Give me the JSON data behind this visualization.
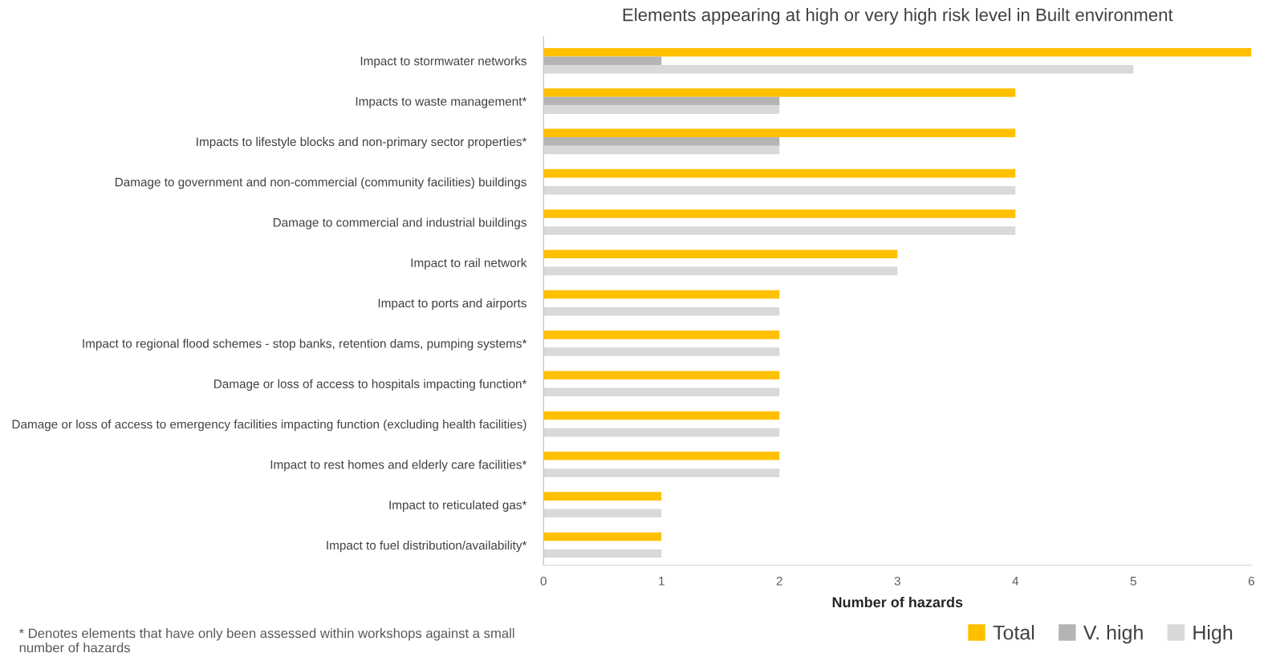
{
  "chart_data": {
    "type": "bar",
    "orientation": "horizontal",
    "title": "Elements appearing at high or very high risk level in Built environment",
    "xlabel": "Number of hazards",
    "categories": [
      "Impact to stormwater networks",
      "Impacts to waste management*",
      "Impacts to lifestyle blocks and non-primary sector properties*",
      "Damage to government and non-commercial (community facilities) buildings",
      "Damage to commercial and industrial buildings",
      "Impact to rail network",
      "Impact to ports and airports",
      "Impact to regional flood schemes - stop banks, retention dams, pumping systems*",
      "Damage or loss of access to hospitals impacting function*",
      "Damage or loss of access to emergency facilities impacting function (excluding health facilities)",
      "Impact to rest homes and elderly care facilities*",
      "Impact to reticulated gas*",
      "Impact to fuel distribution/availability*"
    ],
    "series": [
      {
        "name": "Total",
        "color": "#ffc000",
        "values": [
          6,
          4,
          4,
          4,
          4,
          3,
          2,
          2,
          2,
          2,
          2,
          1,
          1
        ]
      },
      {
        "name": "V. high",
        "color": "#b4b4b4",
        "values": [
          1,
          2,
          2,
          0,
          0,
          0,
          0,
          0,
          0,
          0,
          0,
          0,
          0
        ]
      },
      {
        "name": "High",
        "color": "#d9d9d9",
        "values": [
          5,
          2,
          2,
          4,
          4,
          3,
          2,
          2,
          2,
          2,
          2,
          1,
          1
        ]
      }
    ],
    "xlim": [
      0,
      6
    ],
    "xticks": [
      0,
      1,
      2,
      3,
      4,
      5,
      6
    ],
    "grid": false,
    "legend": "bottom right",
    "annotations": [
      "* Denotes elements that have only been assessed within workshops against a small number of hazards"
    ]
  }
}
